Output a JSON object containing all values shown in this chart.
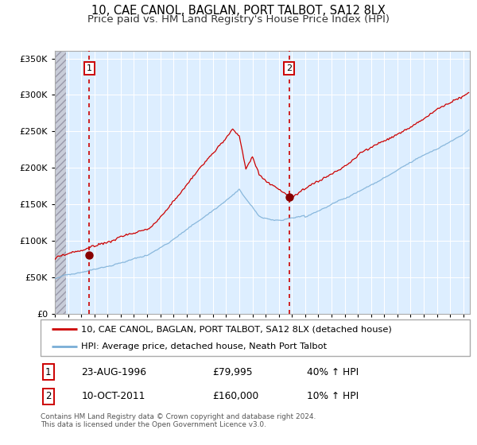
{
  "title": "10, CAE CANOL, BAGLAN, PORT TALBOT, SA12 8LX",
  "subtitle": "Price paid vs. HM Land Registry's House Price Index (HPI)",
  "legend_line1": "10, CAE CANOL, BAGLAN, PORT TALBOT, SA12 8LX (detached house)",
  "legend_line2": "HPI: Average price, detached house, Neath Port Talbot",
  "annotation1_date": "23-AUG-1996",
  "annotation1_price": "£79,995",
  "annotation1_hpi": "40% ↑ HPI",
  "annotation2_date": "10-OCT-2011",
  "annotation2_price": "£160,000",
  "annotation2_hpi": "10% ↑ HPI",
  "sale1_price": 79995,
  "sale2_price": 160000,
  "red_line_color": "#cc0000",
  "blue_line_color": "#7aaed6",
  "bg_plot_color": "#ddeeff",
  "bg_hatch_color": "#c8ccd8",
  "grid_color": "#ffffff",
  "ylim": [
    0,
    360000
  ],
  "yticks": [
    0,
    50000,
    100000,
    150000,
    200000,
    250000,
    300000,
    350000
  ],
  "xlim_start": 1994.0,
  "xlim_end": 2025.5,
  "footer_text": "Contains HM Land Registry data © Crown copyright and database right 2024.\nThis data is licensed under the Open Government Licence v3.0.",
  "title_fontsize": 10.5,
  "subtitle_fontsize": 9.5
}
